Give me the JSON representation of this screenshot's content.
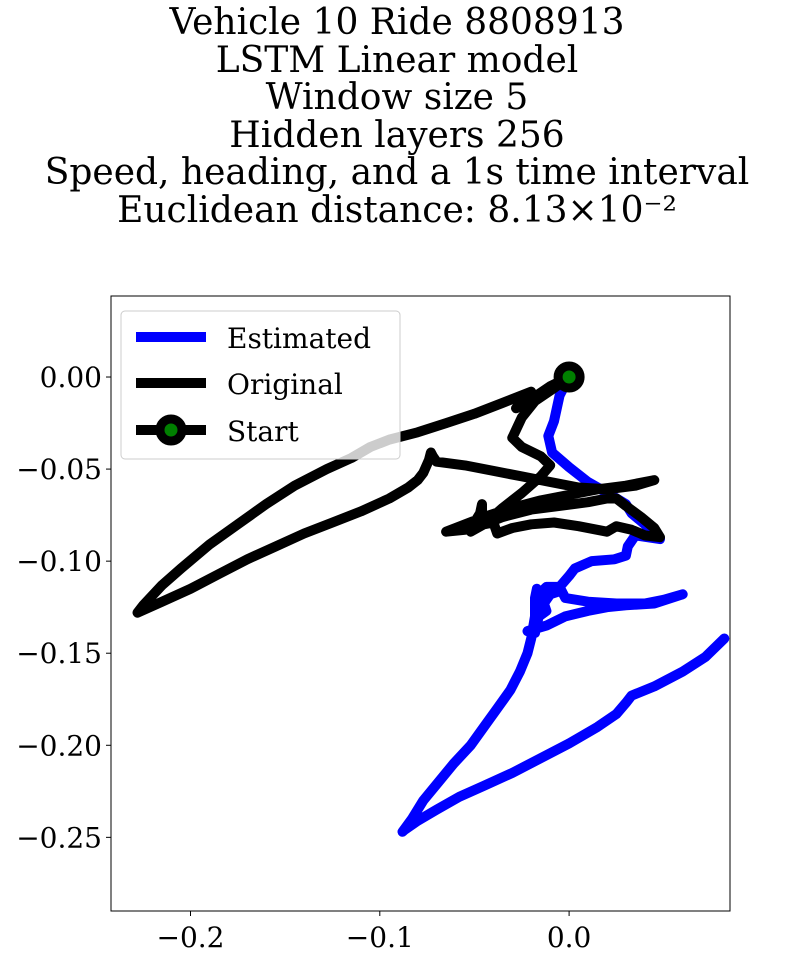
{
  "chart_data": {
    "type": "line",
    "title_lines": [
      "Vehicle 10 Ride 8808913",
      "LSTM Linear model",
      "Window size 5",
      "Hidden layers 256",
      "Speed, heading, and a 1s time interval",
      "Euclidean distance: 8.13×10⁻²"
    ],
    "xlabel": "",
    "ylabel": "",
    "xlim": [
      -0.242,
      0.085
    ],
    "ylim": [
      -0.29,
      0.044
    ],
    "x_ticks": [
      -0.2,
      -0.1,
      0.0
    ],
    "x_tick_labels": [
      "−0.2",
      "−0.1",
      "0.0"
    ],
    "y_ticks": [
      0.0,
      -0.05,
      -0.1,
      -0.15,
      -0.2,
      -0.25
    ],
    "y_tick_labels": [
      "0.00",
      "−0.05",
      "−0.10",
      "−0.15",
      "−0.20",
      "−0.25"
    ],
    "grid": false,
    "legend_position": "top-left",
    "series": [
      {
        "name": "Estimated",
        "color": "#0000ff",
        "points": [
          [
            0.0,
            0.0
          ],
          [
            -0.005,
            -0.01
          ],
          [
            -0.008,
            -0.024
          ],
          [
            -0.011,
            -0.032
          ],
          [
            -0.009,
            -0.041
          ],
          [
            0.0,
            -0.049
          ],
          [
            0.01,
            -0.057
          ],
          [
            0.022,
            -0.064
          ],
          [
            0.03,
            -0.069
          ],
          [
            0.033,
            -0.074
          ],
          [
            0.04,
            -0.08
          ],
          [
            0.044,
            -0.085
          ],
          [
            0.048,
            -0.088
          ],
          [
            0.035,
            -0.086
          ],
          [
            0.031,
            -0.092
          ],
          [
            0.03,
            -0.097
          ],
          [
            0.024,
            -0.099
          ],
          [
            0.012,
            -0.1
          ],
          [
            0.003,
            -0.104
          ],
          [
            0.0,
            -0.108
          ],
          [
            -0.005,
            -0.114
          ],
          [
            -0.012,
            -0.114
          ],
          [
            -0.016,
            -0.118
          ],
          [
            -0.014,
            -0.124
          ],
          [
            -0.01,
            -0.118
          ],
          [
            -0.004,
            -0.116
          ],
          [
            -0.002,
            -0.12
          ],
          [
            0.01,
            -0.122
          ],
          [
            0.025,
            -0.123
          ],
          [
            0.04,
            -0.123
          ],
          [
            0.05,
            -0.121
          ],
          [
            0.06,
            -0.118
          ],
          [
            0.045,
            -0.123
          ],
          [
            0.03,
            -0.124
          ],
          [
            0.02,
            -0.125
          ],
          [
            0.01,
            -0.127
          ],
          [
            -0.002,
            -0.13
          ],
          [
            -0.012,
            -0.135
          ],
          [
            -0.022,
            -0.138
          ],
          [
            -0.018,
            -0.139
          ],
          [
            -0.017,
            -0.134
          ],
          [
            -0.016,
            -0.13
          ],
          [
            -0.012,
            -0.127
          ],
          [
            -0.013,
            -0.124
          ],
          [
            -0.016,
            -0.12
          ],
          [
            -0.017,
            -0.115
          ],
          [
            -0.018,
            -0.12
          ],
          [
            -0.018,
            -0.13
          ],
          [
            -0.02,
            -0.142
          ],
          [
            -0.022,
            -0.15
          ],
          [
            -0.026,
            -0.16
          ],
          [
            -0.031,
            -0.17
          ],
          [
            -0.038,
            -0.18
          ],
          [
            -0.045,
            -0.19
          ],
          [
            -0.052,
            -0.2
          ],
          [
            -0.061,
            -0.21
          ],
          [
            -0.069,
            -0.22
          ],
          [
            -0.077,
            -0.23
          ],
          [
            -0.083,
            -0.24
          ],
          [
            -0.088,
            -0.247
          ],
          [
            -0.087,
            -0.246
          ],
          [
            -0.08,
            -0.241
          ],
          [
            -0.07,
            -0.235
          ],
          [
            -0.058,
            -0.228
          ],
          [
            -0.045,
            -0.222
          ],
          [
            -0.03,
            -0.215
          ],
          [
            -0.015,
            -0.207
          ],
          [
            0.0,
            -0.199
          ],
          [
            0.015,
            -0.19
          ],
          [
            0.025,
            -0.183
          ],
          [
            0.03,
            -0.177
          ],
          [
            0.033,
            -0.173
          ],
          [
            0.045,
            -0.168
          ],
          [
            0.06,
            -0.16
          ],
          [
            0.072,
            -0.152
          ],
          [
            0.082,
            -0.142
          ]
        ]
      },
      {
        "name": "Original",
        "color": "#000000",
        "points": [
          [
            0.0,
            0.0
          ],
          [
            -0.01,
            -0.005
          ],
          [
            -0.02,
            -0.012
          ],
          [
            -0.028,
            -0.017
          ],
          [
            -0.02,
            -0.008
          ],
          [
            -0.035,
            -0.014
          ],
          [
            -0.05,
            -0.02
          ],
          [
            -0.065,
            -0.025
          ],
          [
            -0.08,
            -0.03
          ],
          [
            -0.095,
            -0.034
          ],
          [
            -0.105,
            -0.038
          ],
          [
            -0.115,
            -0.044
          ],
          [
            -0.128,
            -0.05
          ],
          [
            -0.145,
            -0.059
          ],
          [
            -0.16,
            -0.069
          ],
          [
            -0.175,
            -0.08
          ],
          [
            -0.19,
            -0.091
          ],
          [
            -0.205,
            -0.104
          ],
          [
            -0.215,
            -0.113
          ],
          [
            -0.225,
            -0.124
          ],
          [
            -0.228,
            -0.128
          ],
          [
            -0.215,
            -0.122
          ],
          [
            -0.2,
            -0.115
          ],
          [
            -0.185,
            -0.107
          ],
          [
            -0.17,
            -0.099
          ],
          [
            -0.155,
            -0.092
          ],
          [
            -0.14,
            -0.085
          ],
          [
            -0.125,
            -0.079
          ],
          [
            -0.11,
            -0.073
          ],
          [
            -0.095,
            -0.066
          ],
          [
            -0.085,
            -0.06
          ],
          [
            -0.08,
            -0.056
          ],
          [
            -0.077,
            -0.052
          ],
          [
            -0.074,
            -0.045
          ],
          [
            -0.073,
            -0.041
          ],
          [
            -0.072,
            -0.043
          ],
          [
            -0.07,
            -0.046
          ],
          [
            -0.055,
            -0.048
          ],
          [
            -0.04,
            -0.051
          ],
          [
            -0.025,
            -0.054
          ],
          [
            -0.01,
            -0.057
          ],
          [
            0.005,
            -0.06
          ],
          [
            0.02,
            -0.061
          ],
          [
            0.035,
            -0.059
          ],
          [
            0.045,
            -0.056
          ],
          [
            0.03,
            -0.059
          ],
          [
            0.015,
            -0.061
          ],
          [
            0.0,
            -0.064
          ],
          [
            -0.015,
            -0.067
          ],
          [
            -0.03,
            -0.071
          ],
          [
            -0.045,
            -0.076
          ],
          [
            -0.06,
            -0.082
          ],
          [
            -0.065,
            -0.084
          ],
          [
            -0.055,
            -0.083
          ],
          [
            -0.05,
            -0.079
          ],
          [
            -0.047,
            -0.074
          ],
          [
            -0.046,
            -0.069
          ],
          [
            -0.046,
            -0.075
          ],
          [
            -0.048,
            -0.081
          ],
          [
            -0.052,
            -0.084
          ],
          [
            -0.045,
            -0.08
          ],
          [
            -0.035,
            -0.076
          ],
          [
            -0.02,
            -0.072
          ],
          [
            -0.005,
            -0.07
          ],
          [
            0.01,
            -0.068
          ],
          [
            0.02,
            -0.066
          ],
          [
            0.025,
            -0.066
          ],
          [
            0.03,
            -0.07
          ],
          [
            0.038,
            -0.076
          ],
          [
            0.045,
            -0.082
          ],
          [
            0.048,
            -0.087
          ],
          [
            0.04,
            -0.086
          ],
          [
            0.033,
            -0.083
          ],
          [
            0.025,
            -0.081
          ],
          [
            0.02,
            -0.084
          ],
          [
            0.005,
            -0.081
          ],
          [
            -0.008,
            -0.079
          ],
          [
            -0.02,
            -0.08
          ],
          [
            -0.03,
            -0.082
          ],
          [
            -0.038,
            -0.085
          ],
          [
            -0.04,
            -0.079
          ],
          [
            -0.045,
            -0.08
          ],
          [
            -0.035,
            -0.071
          ],
          [
            -0.025,
            -0.063
          ],
          [
            -0.015,
            -0.054
          ],
          [
            -0.01,
            -0.048
          ],
          [
            -0.015,
            -0.043
          ],
          [
            -0.025,
            -0.038
          ],
          [
            -0.03,
            -0.033
          ],
          [
            -0.025,
            -0.022
          ],
          [
            -0.018,
            -0.013
          ],
          [
            -0.008,
            -0.006
          ],
          [
            0.0,
            0.0
          ]
        ]
      }
    ],
    "start_point": {
      "name": "Start",
      "x": 0.0,
      "y": 0.0,
      "marker_edge_color": "#000000",
      "marker_face_color": "#008000"
    }
  }
}
